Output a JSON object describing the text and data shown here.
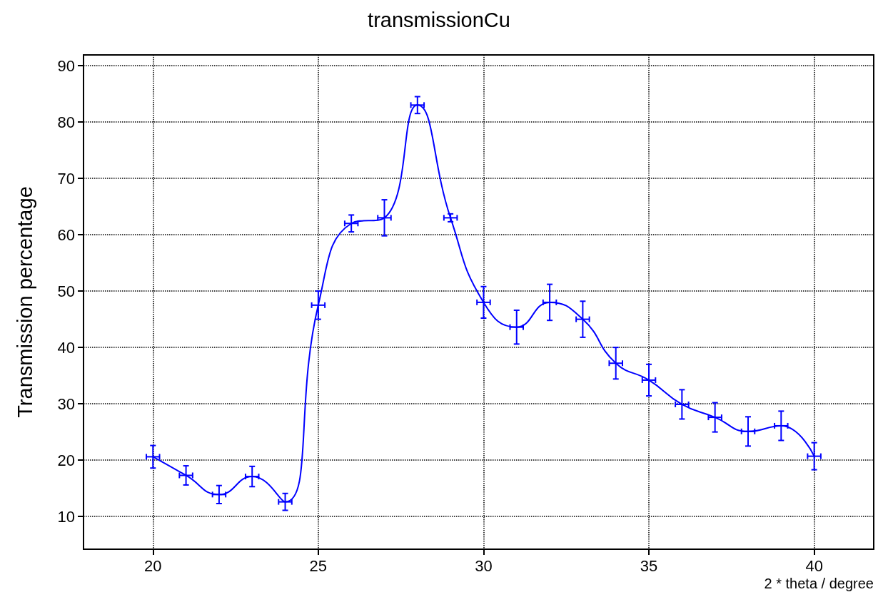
{
  "chart_data": {
    "type": "line",
    "title": "transmissionCu",
    "xlabel": "2 * theta / degree",
    "ylabel": "Transmission percentage",
    "x": [
      20,
      21,
      22,
      23,
      24,
      25,
      26,
      27,
      28,
      29,
      30,
      31,
      32,
      33,
      34,
      35,
      36,
      37,
      38,
      39,
      40
    ],
    "series": [
      {
        "color": "#0000ff",
        "values": [
          20.6,
          17.3,
          13.9,
          17.1,
          12.6,
          47.5,
          62,
          63,
          83,
          63,
          48,
          43.6,
          48,
          45,
          37.2,
          34.2,
          29.9,
          27.6,
          25.1,
          26.1,
          20.7
        ],
        "errors": [
          2,
          1.7,
          1.6,
          1.8,
          1.5,
          2.5,
          1.5,
          3.2,
          1.5,
          0.7,
          2.8,
          3,
          3.2,
          3.2,
          2.8,
          2.8,
          2.6,
          2.6,
          2.6,
          2.6,
          2.4
        ],
        "xerrors": [
          0.2,
          0.2,
          0.2,
          0.2,
          0.2,
          0.2,
          0.2,
          0.2,
          0.2,
          0.2,
          0.2,
          0.2,
          0.2,
          0.2,
          0.2,
          0.2,
          0.2,
          0.2,
          0.2,
          0.2,
          0.2
        ]
      }
    ],
    "xlim": [
      17.9,
      41.8
    ],
    "xticks": [
      20,
      25,
      30,
      35,
      40
    ],
    "ylim": [
      4.2,
      91.9
    ],
    "yticks": [
      10,
      20,
      30,
      40,
      50,
      60,
      70,
      80,
      90
    ],
    "grid": true,
    "marker": "none",
    "line_style": "solid"
  }
}
